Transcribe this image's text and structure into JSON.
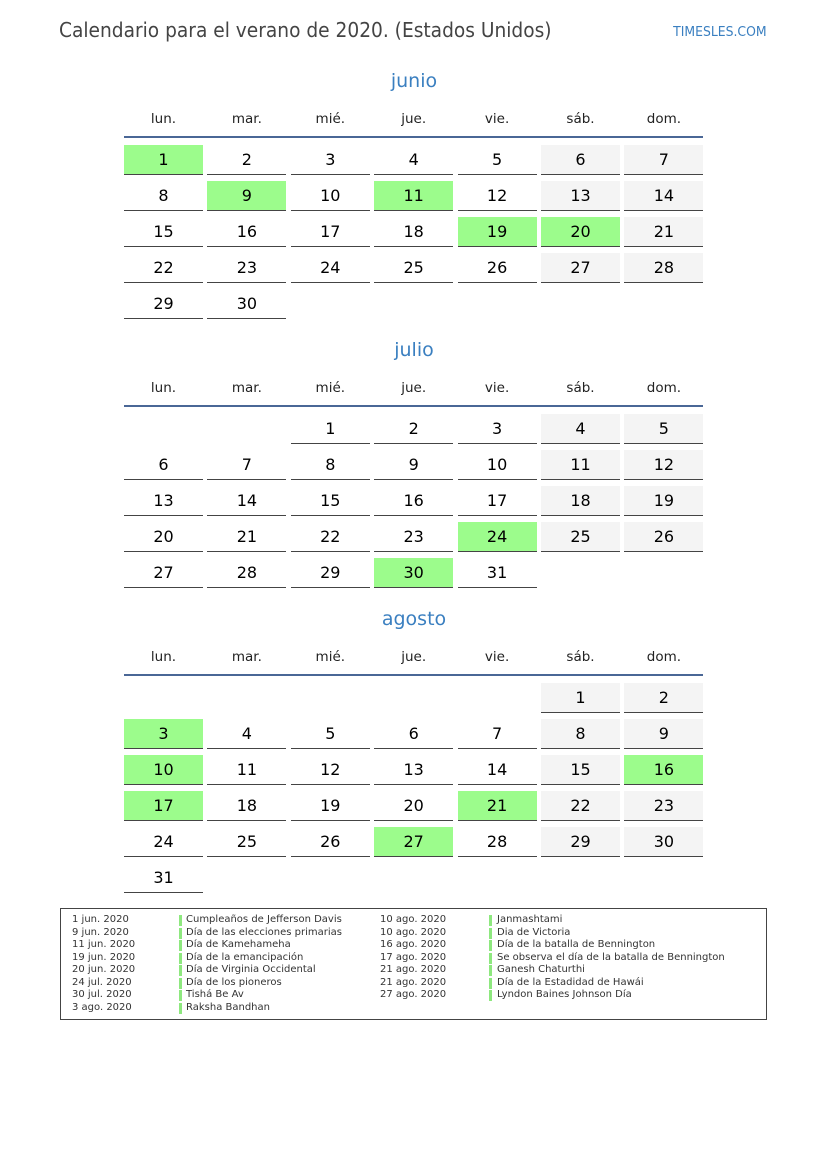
{
  "header": {
    "title": "Calendario para el verano de 2020. (Estados Unidos)",
    "brand": "TIMESLES.COM"
  },
  "colors": {
    "accent": "#3a7fc0",
    "holiday": "#9cfc8c",
    "weekend": "#f4f4f4",
    "rule": "#4a6796"
  },
  "weekdays": [
    "lun.",
    "mar.",
    "mié.",
    "jue.",
    "vie.",
    "sáb.",
    "dom."
  ],
  "months": [
    {
      "name": "junio",
      "first_weekday_index": 0,
      "days": 30,
      "holidays": [
        1,
        9,
        11,
        19,
        20
      ]
    },
    {
      "name": "julio",
      "first_weekday_index": 2,
      "days": 31,
      "holidays": [
        24,
        30
      ]
    },
    {
      "name": "agosto",
      "first_weekday_index": 5,
      "days": 31,
      "holidays": [
        3,
        10,
        16,
        17,
        21,
        27
      ]
    }
  ],
  "legend": [
    {
      "date": "1 jun. 2020",
      "name": "Cumpleaños de Jefferson Davis"
    },
    {
      "date": "9 jun. 2020",
      "name": "Día de las elecciones primarias"
    },
    {
      "date": "11 jun. 2020",
      "name": "Día de Kamehameha"
    },
    {
      "date": "19 jun. 2020",
      "name": "Día de la emancipación"
    },
    {
      "date": "20 jun. 2020",
      "name": "Día de Virginia Occidental"
    },
    {
      "date": "24 jul. 2020",
      "name": "Día de los pioneros"
    },
    {
      "date": "30 jul. 2020",
      "name": "Tishá Be Av"
    },
    {
      "date": "3 ago. 2020",
      "name": "Raksha Bandhan"
    },
    {
      "date": "10 ago. 2020",
      "name": "Janmashtami"
    },
    {
      "date": "10 ago. 2020",
      "name": "Dia de Victoria"
    },
    {
      "date": "16 ago. 2020",
      "name": "Día de la batalla de Bennington"
    },
    {
      "date": "17 ago. 2020",
      "name": "Se observa el día de la batalla de Bennington"
    },
    {
      "date": "21 ago. 2020",
      "name": "Ganesh Chaturthi"
    },
    {
      "date": "21 ago. 2020",
      "name": "Día de la Estadidad de Hawái"
    },
    {
      "date": "27 ago. 2020",
      "name": "Lyndon Baines Johnson Día"
    }
  ]
}
